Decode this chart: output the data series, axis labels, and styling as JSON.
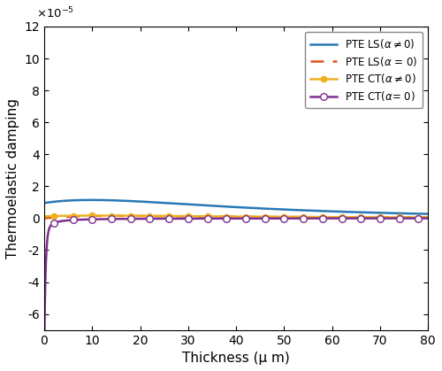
{
  "title": "",
  "xlabel": "Thickness (μ m)",
  "ylabel": "Thermoelastic damping",
  "xlim": [
    0,
    80
  ],
  "ylim": [
    -7e-05,
    0.00012
  ],
  "colors": {
    "LS_nonzero": "#2878b5",
    "LS_zero": "#d95319",
    "CT_nonzero": "#edb120",
    "CT_zero": "#7e2f8e"
  },
  "legend_labels": [
    "PTE LS(α≠0)",
    "PTE LS(α = 0)",
    "PTE CT(α≠0)",
    "PTE CT(α= 0)"
  ]
}
